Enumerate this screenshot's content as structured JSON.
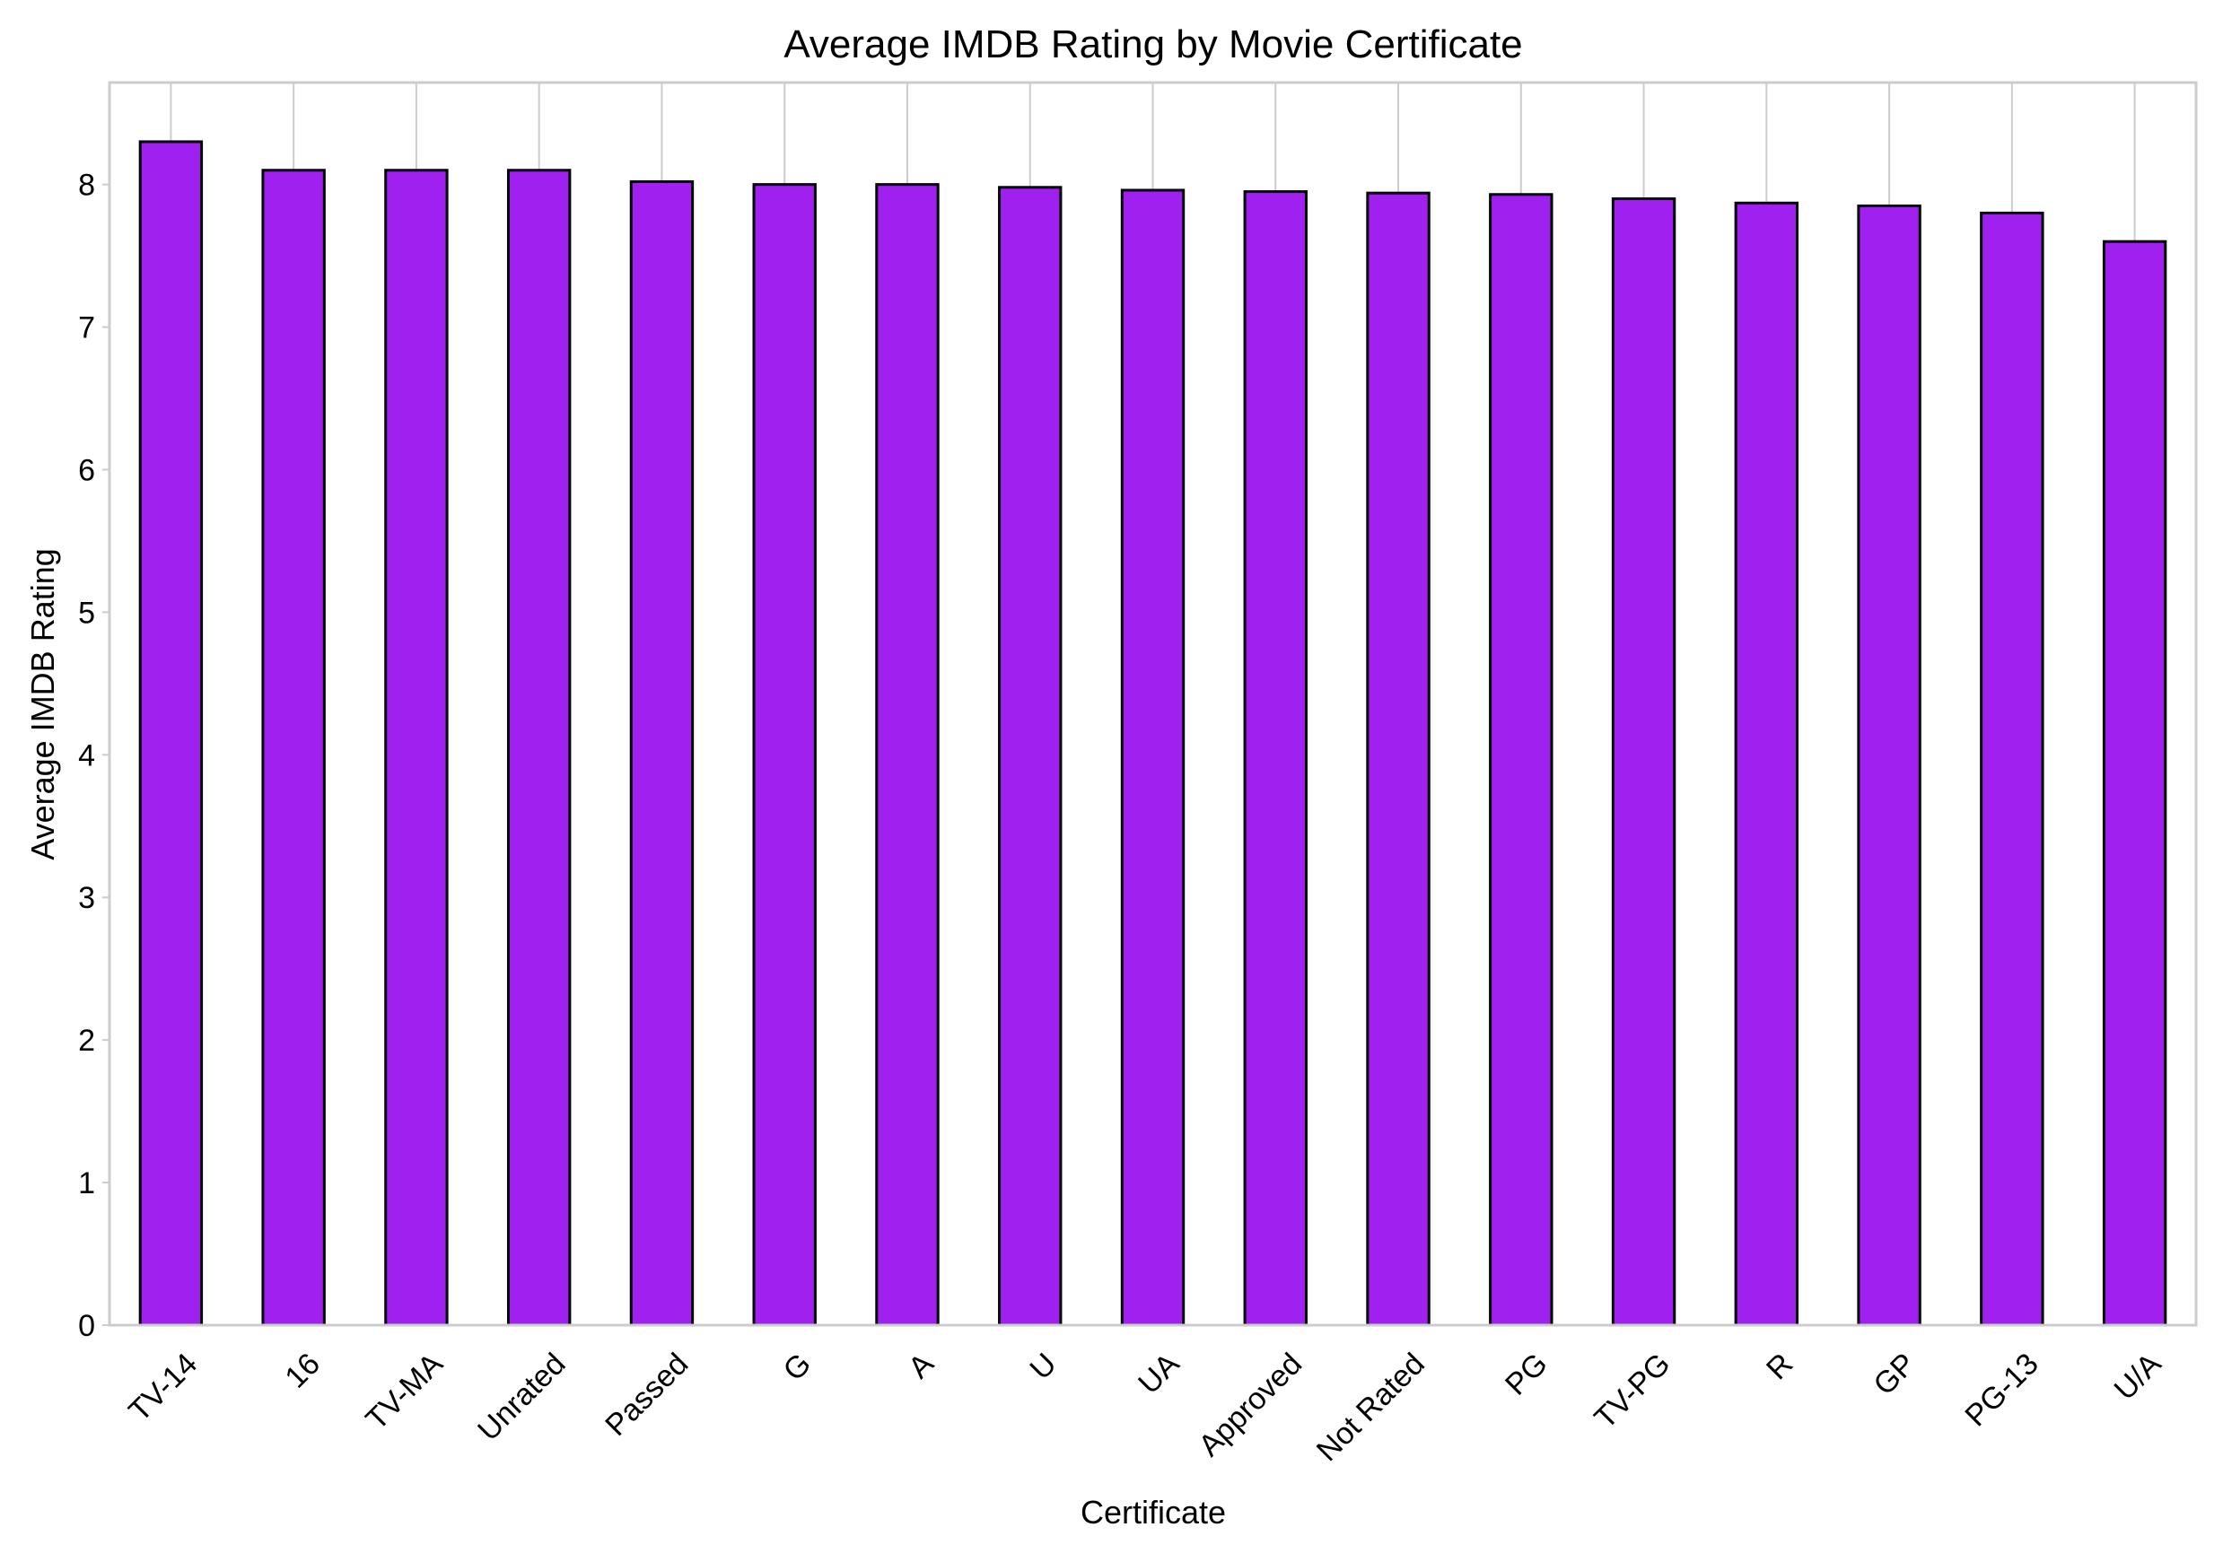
{
  "colors": {
    "bar_fill": "#a020f0",
    "bar_edge": "#000000",
    "grid": "#cccccc",
    "frame": "#cccccc",
    "background": "#ffffff"
  },
  "chart_data": {
    "type": "bar",
    "title": "Average IMDB Rating by Movie Certificate",
    "xlabel": "Certificate",
    "ylabel": "Average IMDB Rating",
    "categories": [
      "TV-14",
      "16",
      "TV-MA",
      "Unrated",
      "Passed",
      "G",
      "A",
      "U",
      "UA",
      "Approved",
      "Not Rated",
      "PG",
      "TV-PG",
      "R",
      "GP",
      "PG-13",
      "U/A"
    ],
    "values": [
      8.3,
      8.1,
      8.1,
      8.1,
      8.02,
      8.0,
      8.0,
      7.98,
      7.96,
      7.95,
      7.94,
      7.93,
      7.9,
      7.87,
      7.85,
      7.8,
      7.6
    ],
    "ylim": [
      0,
      8.715
    ],
    "yticks": [
      "0",
      "1",
      "2",
      "3",
      "4",
      "5",
      "6",
      "7",
      "8"
    ],
    "grid": "vertical at category positions",
    "legend": "none"
  }
}
